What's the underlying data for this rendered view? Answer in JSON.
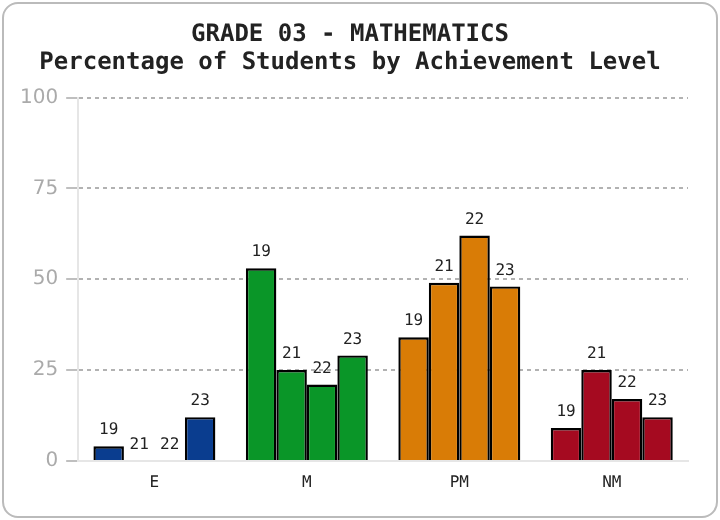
{
  "chart_data": {
    "type": "bar",
    "title": "GRADE 03 - MATHEMATICS",
    "subtitle": "Percentage of Students by Achievement Level",
    "categories": [
      "E",
      "M",
      "PM",
      "NM"
    ],
    "series": [
      {
        "name": "19",
        "colors": [
          "#0a3d8f",
          "#0a9628",
          "#d97c06",
          "#a50a20"
        ],
        "values": [
          4,
          53,
          34,
          9
        ]
      },
      {
        "name": "21",
        "colors": [
          "#0a3d8f",
          "#0a9628",
          "#d97c06",
          "#a50a20"
        ],
        "values": [
          0,
          25,
          49,
          25
        ]
      },
      {
        "name": "22",
        "colors": [
          "#0a3d8f",
          "#0a9628",
          "#d97c06",
          "#a50a20"
        ],
        "values": [
          0,
          21,
          62,
          17
        ]
      },
      {
        "name": "23",
        "colors": [
          "#0a3d8f",
          "#0a9628",
          "#d97c06",
          "#a50a20"
        ],
        "values": [
          12,
          29,
          48,
          12
        ]
      }
    ],
    "ylim": [
      0,
      100
    ],
    "yticks": [
      0,
      25,
      50,
      75,
      100
    ],
    "grid": "y",
    "legend": false
  }
}
